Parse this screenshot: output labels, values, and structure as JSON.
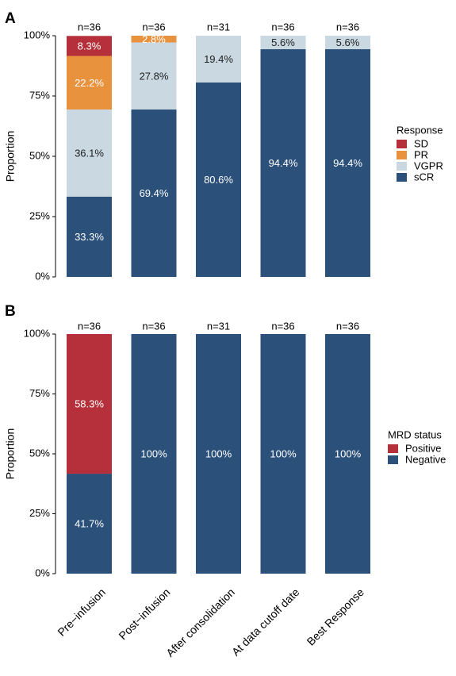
{
  "chart_data": [
    {
      "panel": "A",
      "type": "bar",
      "stacked": true,
      "ylabel": "Proportion",
      "ylim": [
        0,
        100
      ],
      "yticks": [
        "0%",
        "25%",
        "50%",
        "75%",
        "100%"
      ],
      "categories": [
        "Pre−infusion",
        "Post−infusion",
        "After consolidation",
        "At data cutoff date",
        "Best Response"
      ],
      "n": [
        "n=36",
        "n=36",
        "n=31",
        "n=36",
        "n=36"
      ],
      "legend_title": "Response",
      "legend_position": "right",
      "series": [
        {
          "name": "sCR",
          "color": "#2b5079",
          "label_color": "#ffffff",
          "values": [
            33.3,
            69.4,
            80.6,
            94.4,
            94.4
          ],
          "labels": [
            "33.3%",
            "69.4%",
            "80.6%",
            "94.4%",
            "94.4%"
          ]
        },
        {
          "name": "VGPR",
          "color": "#c9d8e1",
          "label_color": "#222222",
          "values": [
            36.1,
            27.8,
            19.4,
            5.6,
            5.6
          ],
          "labels": [
            "36.1%",
            "27.8%",
            "19.4%",
            "5.6%",
            "5.6%"
          ]
        },
        {
          "name": "PR",
          "color": "#e8923e",
          "label_color": "#ffffff",
          "values": [
            22.2,
            2.8,
            0,
            0,
            0
          ],
          "labels": [
            "22.2%",
            "2.8%",
            "",
            "",
            ""
          ]
        },
        {
          "name": "SD",
          "color": "#b5303a",
          "label_color": "#ffffff",
          "values": [
            8.3,
            0,
            0,
            0,
            0
          ],
          "labels": [
            "8.3%",
            "",
            "",
            "",
            ""
          ]
        }
      ],
      "legend_order": [
        "SD",
        "PR",
        "VGPR",
        "sCR"
      ]
    },
    {
      "panel": "B",
      "type": "bar",
      "stacked": true,
      "ylabel": "Proportion",
      "ylim": [
        0,
        100
      ],
      "yticks": [
        "0%",
        "25%",
        "50%",
        "75%",
        "100%"
      ],
      "categories": [
        "Pre−infusion",
        "Post−infusion",
        "After consolidation",
        "At data cutoff date",
        "Best Response"
      ],
      "n": [
        "n=36",
        "n=36",
        "n=31",
        "n=36",
        "n=36"
      ],
      "legend_title": "MRD status",
      "legend_position": "right",
      "series": [
        {
          "name": "Negative",
          "color": "#2b5079",
          "label_color": "#ffffff",
          "values": [
            41.7,
            100,
            100,
            100,
            100
          ],
          "labels": [
            "41.7%",
            "100%",
            "100%",
            "100%",
            "100%"
          ]
        },
        {
          "name": "Positive",
          "color": "#b5303a",
          "label_color": "#ffffff",
          "values": [
            58.3,
            0,
            0,
            0,
            0
          ],
          "labels": [
            "58.3%",
            "",
            "",
            "",
            ""
          ]
        }
      ],
      "legend_order": [
        "Positive",
        "Negative"
      ]
    }
  ]
}
